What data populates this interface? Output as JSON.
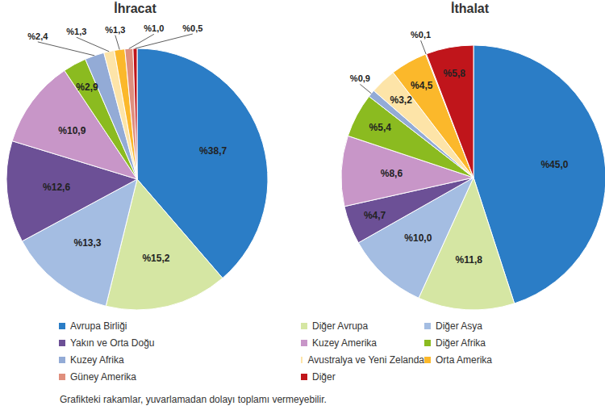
{
  "chart_data": [
    {
      "type": "pie",
      "title": "İhracat",
      "categories": [
        "Avrupa Birliği",
        "Diğer Avrupa",
        "Diğer Asya",
        "Yakın ve Orta Doğu",
        "Kuzey Amerika",
        "Diğer Afrika",
        "Kuzey Afrika",
        "Avustralya ve Yeni Zelanda",
        "Orta Amerika",
        "Güney Amerika",
        "Diğer"
      ],
      "values": [
        38.7,
        15.2,
        13.3,
        12.6,
        10.9,
        2.9,
        2.4,
        1.3,
        1.3,
        1.0,
        0.5
      ],
      "value_labels": [
        "%38,7",
        "%15,2",
        "%13,3",
        "%12,6",
        "%10,9",
        "%2,9",
        "%2,4",
        "%1,3",
        "%1,3",
        "%1,0",
        "%0,5"
      ],
      "colors": [
        "#2b7dc6",
        "#d5e6a3",
        "#a4bde2",
        "#6c5096",
        "#c896c8",
        "#8bbb20",
        "#93abd6",
        "#fde4a8",
        "#fbb82b",
        "#e08f7d",
        "#c0151b"
      ],
      "data_labels": true,
      "legend": "bottom"
    },
    {
      "type": "pie",
      "title": "İthalat",
      "categories": [
        "Avrupa Birliği",
        "Diğer Avrupa",
        "Diğer Asya",
        "Yakın ve Orta Doğu",
        "Kuzey Amerika",
        "Diğer Afrika",
        "Kuzey Afrika",
        "Avustralya ve Yeni Zelanda",
        "Orta Amerika",
        "Güney Amerika",
        "Diğer"
      ],
      "values": [
        45.0,
        11.8,
        10.0,
        4.7,
        8.6,
        5.4,
        0.9,
        3.2,
        4.5,
        0.1,
        5.8
      ],
      "value_labels": [
        "%45,0",
        "%11,8",
        "%10,0",
        "%4,7",
        "%8,6",
        "%5,4",
        "%0,9",
        "%3,2",
        "%4,5",
        "%0,1",
        "%5,8"
      ],
      "colors": [
        "#2b7dc6",
        "#d5e6a3",
        "#a4bde2",
        "#6c5096",
        "#c896c8",
        "#8bbb20",
        "#93abd6",
        "#fde4a8",
        "#fbb82b",
        "#e08f7d",
        "#c0151b"
      ],
      "data_labels": true,
      "legend": "bottom"
    }
  ],
  "footnote": "Grafikteki rakamlar, yuvarlamadan dolayı toplamı vermeyebilir."
}
